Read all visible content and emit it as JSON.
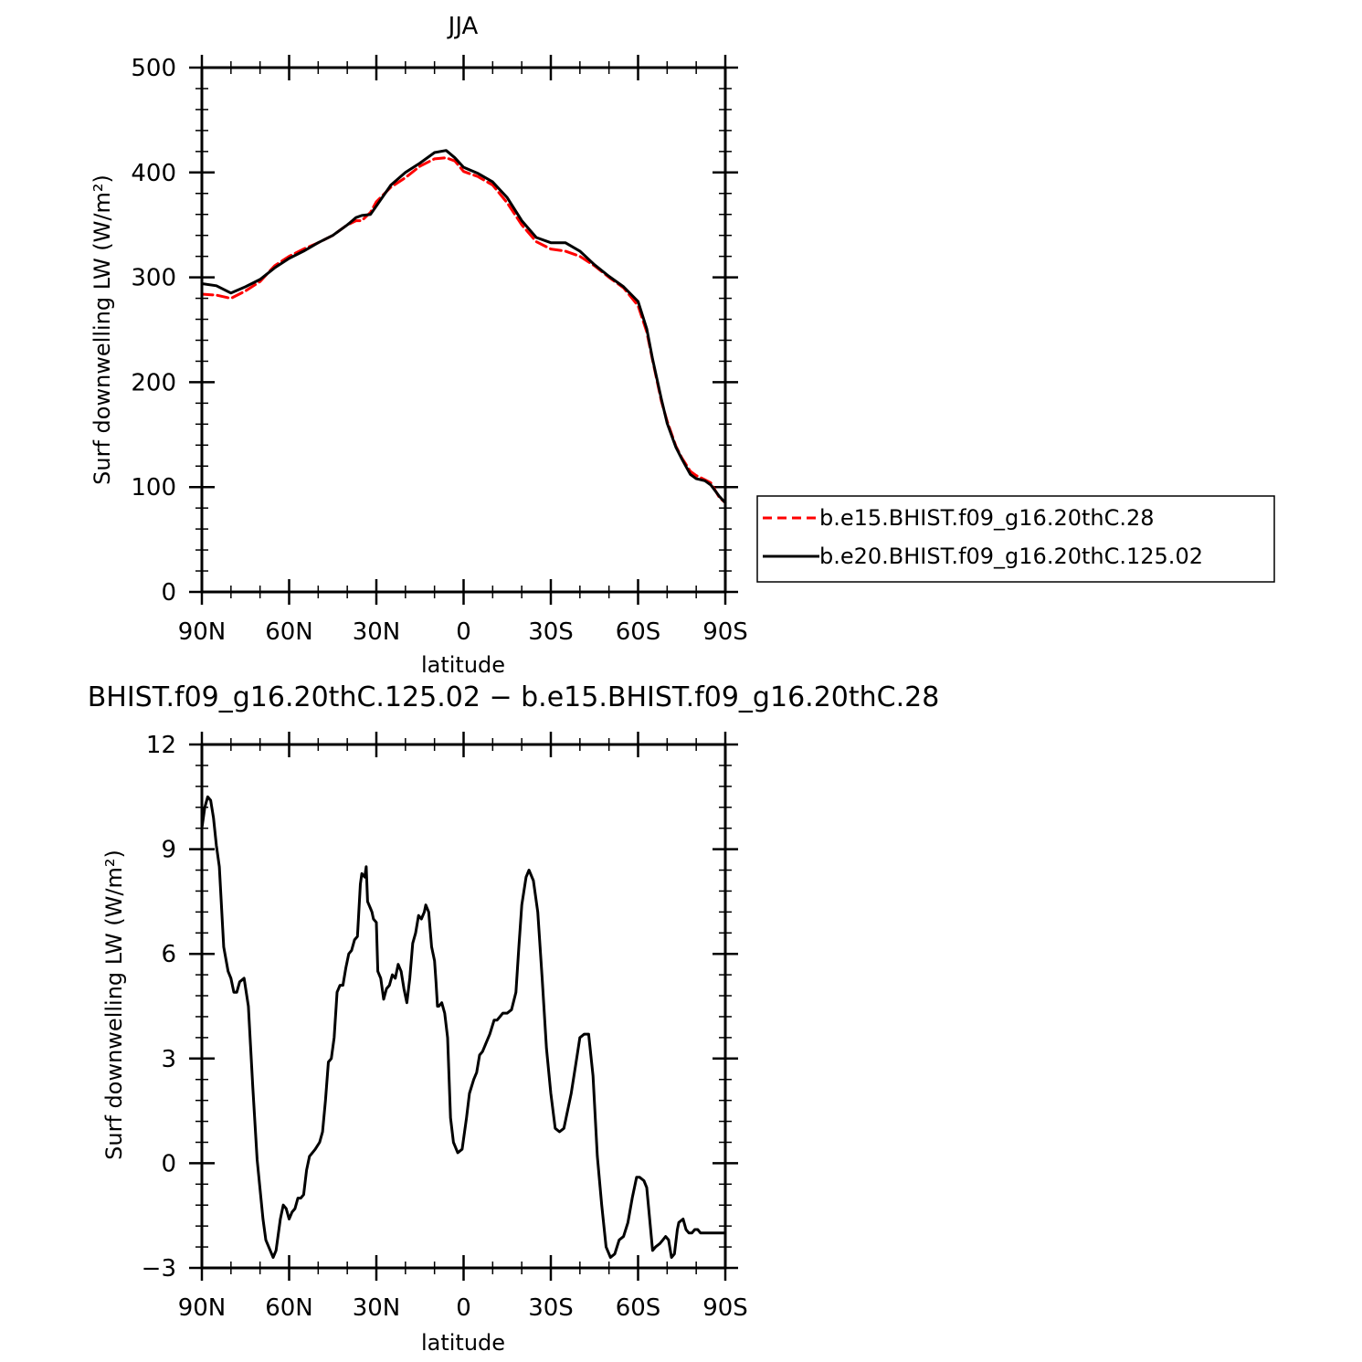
{
  "chart_data": [
    {
      "type": "line",
      "title": "JJA",
      "xlabel": "latitude",
      "ylabel": "Surf downwelling LW (W/m²)",
      "ylim": [
        0,
        500
      ],
      "yticks": [
        0,
        100,
        200,
        300,
        400,
        500
      ],
      "xlim": [
        90,
        -90
      ],
      "xticks": [
        {
          "value": 90,
          "label": "90N"
        },
        {
          "value": 60,
          "label": "60N"
        },
        {
          "value": 30,
          "label": "30N"
        },
        {
          "value": 0,
          "label": "0"
        },
        {
          "value": -30,
          "label": "30S"
        },
        {
          "value": -60,
          "label": "60S"
        },
        {
          "value": -90,
          "label": "90S"
        }
      ],
      "legend": "right",
      "series": [
        {
          "name": "b.e15.BHIST.f09_g16.20thC.28",
          "color": "#ff0000",
          "dash": "dashed",
          "x": [
            90,
            85,
            80,
            75,
            70,
            65,
            60,
            55,
            50,
            45,
            40,
            37,
            35,
            32,
            30,
            25,
            20,
            15,
            10,
            6,
            3,
            0,
            -5,
            -10,
            -15,
            -20,
            -25,
            -30,
            -35,
            -40,
            -45,
            -50,
            -55,
            -60,
            -63,
            -65,
            -68,
            -70,
            -73,
            -75,
            -78,
            -80,
            -83,
            -85,
            -88,
            -90
          ],
          "y": [
            284,
            283,
            280,
            287,
            296,
            311,
            320,
            327,
            333,
            340,
            350,
            354,
            354,
            362,
            372,
            386,
            395,
            406,
            413,
            414,
            411,
            401,
            396,
            388,
            371,
            350,
            334,
            327,
            325,
            320,
            311,
            300,
            290,
            273,
            248,
            221,
            182,
            163,
            139,
            128,
            115,
            111,
            107,
            104,
            90,
            85
          ]
        },
        {
          "name": "b.e20.BHIST.f09_g16.20thC.125.02",
          "color": "#000000",
          "dash": "solid",
          "x": [
            90,
            85,
            80,
            75,
            70,
            65,
            60,
            55,
            50,
            45,
            40,
            37,
            35,
            32,
            30,
            25,
            20,
            15,
            10,
            6,
            3,
            0,
            -5,
            -10,
            -15,
            -20,
            -25,
            -30,
            -35,
            -40,
            -45,
            -50,
            -55,
            -60,
            -63,
            -65,
            -68,
            -70,
            -73,
            -75,
            -78,
            -80,
            -83,
            -85,
            -88,
            -90
          ],
          "y": [
            294,
            292,
            285,
            291,
            298,
            309,
            318,
            325,
            333,
            340,
            350,
            357,
            359,
            360,
            368,
            388,
            400,
            409,
            419,
            421,
            414,
            405,
            399,
            391,
            376,
            354,
            338,
            333,
            333,
            325,
            312,
            301,
            291,
            277,
            251,
            222,
            184,
            161,
            138,
            127,
            112,
            108,
            106,
            102,
            91,
            85
          ]
        }
      ]
    },
    {
      "type": "line",
      "title": "BHIST.f09_g16.20thC.125.02 − b.e15.BHIST.f09_g16.20thC.28",
      "xlabel": "latitude",
      "ylabel": "Surf downwelling LW (W/m²)",
      "ylim": [
        -3,
        12
      ],
      "yticks": [
        -3,
        0,
        3,
        6,
        9,
        12
      ],
      "xlim": [
        90,
        -90
      ],
      "xticks": [
        {
          "value": 90,
          "label": "90N"
        },
        {
          "value": 60,
          "label": "60N"
        },
        {
          "value": 30,
          "label": "30N"
        },
        {
          "value": 0,
          "label": "0"
        },
        {
          "value": -30,
          "label": "30S"
        },
        {
          "value": -60,
          "label": "60S"
        },
        {
          "value": -90,
          "label": "90S"
        }
      ],
      "series": [
        {
          "color": "#000000",
          "dash": "solid",
          "x": [
            90,
            89,
            88,
            87,
            86,
            85,
            84,
            82.5,
            81,
            80,
            79,
            78,
            77,
            75.5,
            74,
            72.5,
            71,
            69,
            68,
            66,
            65.5,
            64.5,
            63,
            62,
            61,
            60,
            59,
            58,
            57,
            56,
            55,
            54,
            53,
            52,
            51,
            49.5,
            48.5,
            47.5,
            46.5,
            45.5,
            44.5,
            43.5,
            42.5,
            41.5,
            40.5,
            39.5,
            38.5,
            37.5,
            36.5,
            35.5,
            35,
            34,
            33.5,
            33,
            32,
            31.5,
            31,
            30,
            29.5,
            28.5,
            27.5,
            26.5,
            25.5,
            24.5,
            23.5,
            22.5,
            21.5,
            20.5,
            19.5,
            18.5,
            17.5,
            16.5,
            15.5,
            14.5,
            13.5,
            13,
            12,
            11.5,
            11,
            10,
            9.5,
            9,
            8.5,
            7.5,
            6.5,
            5.5,
            4.5,
            3.5,
            2,
            0.5,
            -1,
            -2,
            -3.5,
            -4.5,
            -5.5,
            -6.5,
            -7.5,
            -9,
            -10.5,
            -11.5,
            -12.5,
            -13.5,
            -15,
            -16.5,
            -18,
            -19,
            -20,
            -21.5,
            -22.5,
            -24,
            -25.5,
            -27,
            -28.5,
            -30,
            -31.5,
            -33,
            -34.5,
            -35.5,
            -37,
            -38.5,
            -40,
            -41.5,
            -43,
            -44.5,
            -46,
            -47.5,
            -49,
            -50.5,
            -52,
            -53.5,
            -55,
            -56.5,
            -58,
            -59.5,
            -60.5,
            -62,
            -63,
            -64,
            -65,
            -66,
            -67.5,
            -68.5,
            -69.5,
            -70.5,
            -71.5,
            -72.5,
            -73.5,
            -74,
            -75.5,
            -76.5,
            -77.5,
            -78.5,
            -79.5,
            -80.5,
            -81.5,
            -82.5,
            -83.5,
            -84.5,
            -85.5,
            -86.5,
            -87.5,
            -88.5,
            -89.5,
            -90
          ],
          "y": [
            9.6,
            10.2,
            10.5,
            10.4,
            9.9,
            9.1,
            8.5,
            6.2,
            5.5,
            5.3,
            4.9,
            4.9,
            5.2,
            5.3,
            4.5,
            2.2,
            0.1,
            -1.6,
            -2.2,
            -2.6,
            -2.7,
            -2.5,
            -1.6,
            -1.2,
            -1.3,
            -1.6,
            -1.4,
            -1.3,
            -1,
            -1.0,
            -0.9,
            -0.2,
            0.2,
            0.3,
            0.4,
            0.6,
            0.9,
            1.8,
            2.9,
            3.0,
            3.6,
            4.9,
            5.1,
            5.1,
            5.6,
            6.0,
            6.1,
            6.4,
            6.5,
            8.0,
            8.3,
            8.2,
            8.5,
            7.5,
            7.3,
            7.2,
            7.0,
            6.9,
            5.5,
            5.3,
            4.7,
            5.0,
            5.1,
            5.4,
            5.3,
            5.7,
            5.5,
            5.0,
            4.6,
            5.3,
            6.3,
            6.6,
            7.1,
            7.0,
            7.2,
            7.4,
            7.2,
            6.7,
            6.2,
            5.8,
            5.2,
            4.5,
            4.5,
            4.6,
            4.3,
            3.6,
            1.3,
            0.6,
            0.3,
            0.4,
            1.3,
            2.0,
            2.4,
            2.6,
            3.1,
            3.2,
            3.4,
            3.7,
            4.1,
            4.1,
            4.2,
            4.3,
            4.3,
            4.4,
            4.9,
            6.2,
            7.4,
            8.2,
            8.4,
            8.1,
            7.2,
            5.3,
            3.3,
            2.0,
            1.0,
            0.9,
            1.0,
            1.4,
            2.0,
            2.8,
            3.6,
            3.7,
            3.7,
            2.5,
            0.2,
            -1.2,
            -2.4,
            -2.7,
            -2.6,
            -2.2,
            -2.1,
            -1.7,
            -1.0,
            -0.4,
            -0.4,
            -0.5,
            -0.7,
            -1.6,
            -2.5,
            -2.4,
            -2.3,
            -2.2,
            -2.1,
            -2.2,
            -2.7,
            -2.6,
            -1.9,
            -1.7,
            -1.6,
            -1.9,
            -2.0,
            -2.0,
            -1.9,
            -1.9,
            -2.0,
            -2.0,
            -2.0,
            -2.0,
            -2.0,
            -2.0,
            -2.0,
            -2.0,
            -2.0,
            -2.0
          ]
        }
      ]
    }
  ]
}
